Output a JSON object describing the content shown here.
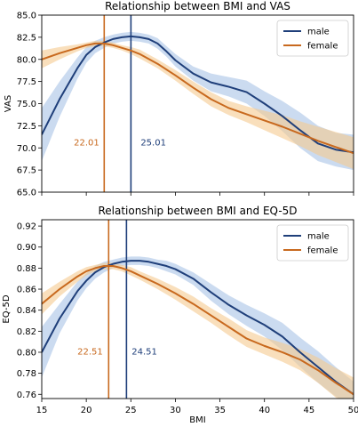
{
  "chart_data": [
    {
      "type": "line",
      "title": "Relationship between BMI and VAS",
      "xlabel": "",
      "ylabel": "VAS",
      "xlim": [
        15,
        50
      ],
      "ylim": [
        65.0,
        85.0
      ],
      "xticks": [
        15,
        20,
        25,
        30,
        35,
        40,
        45,
        50
      ],
      "yticks": [
        65.0,
        67.5,
        70.0,
        72.5,
        75.0,
        77.5,
        80.0,
        82.5,
        85.0
      ],
      "ytick_labels": [
        "65.0",
        "67.5",
        "70.0",
        "72.5",
        "75.0",
        "77.5",
        "80.0",
        "82.5",
        "85.0"
      ],
      "show_xtick_labels": false,
      "grid": false,
      "legend": "top-right",
      "series": [
        {
          "name": "male",
          "color": "#1f3f7a",
          "band_color": "#a9c3e6",
          "x": [
            15,
            17,
            19,
            20,
            21,
            22,
            23,
            24,
            25,
            26,
            27,
            28,
            29,
            30,
            32,
            34,
            36,
            38,
            40,
            42,
            44,
            46,
            48,
            50
          ],
          "y": [
            71.5,
            75.5,
            79.0,
            80.5,
            81.4,
            81.9,
            82.3,
            82.5,
            82.6,
            82.5,
            82.3,
            81.8,
            80.9,
            79.9,
            78.4,
            77.4,
            76.9,
            76.3,
            75.0,
            73.6,
            72.0,
            70.5,
            69.8,
            69.5
          ],
          "lower": [
            68.5,
            73.5,
            77.8,
            79.6,
            80.7,
            81.3,
            81.8,
            82.0,
            82.1,
            82.0,
            81.8,
            81.2,
            80.3,
            79.2,
            77.6,
            76.4,
            75.8,
            75.0,
            73.6,
            71.9,
            70.0,
            68.5,
            67.9,
            67.5
          ],
          "upper": [
            74.5,
            77.5,
            80.2,
            81.4,
            82.1,
            82.5,
            82.8,
            83.0,
            83.1,
            83.0,
            82.8,
            82.4,
            81.5,
            80.6,
            79.2,
            78.4,
            78.0,
            77.6,
            76.4,
            75.3,
            74.0,
            72.5,
            71.7,
            71.5
          ]
        },
        {
          "name": "female",
          "color": "#c8691e",
          "band_color": "#f5c98f",
          "x": [
            15,
            17,
            19,
            20,
            21,
            22,
            23,
            24,
            25,
            26,
            28,
            30,
            32,
            34,
            36,
            38,
            40,
            42,
            44,
            46,
            48,
            50
          ],
          "y": [
            80.0,
            80.7,
            81.3,
            81.6,
            81.8,
            81.8,
            81.6,
            81.3,
            81.0,
            80.6,
            79.5,
            78.2,
            76.8,
            75.5,
            74.5,
            73.8,
            73.1,
            72.4,
            71.6,
            70.8,
            70.1,
            69.4
          ],
          "lower": [
            79.0,
            80.0,
            80.9,
            81.3,
            81.5,
            81.5,
            81.3,
            81.0,
            80.6,
            80.1,
            79.0,
            77.6,
            76.1,
            74.7,
            73.7,
            72.9,
            72.0,
            71.1,
            70.2,
            69.2,
            68.4,
            67.6
          ],
          "upper": [
            81.0,
            81.4,
            81.7,
            81.9,
            82.1,
            82.1,
            81.9,
            81.6,
            81.4,
            81.1,
            80.0,
            78.8,
            77.5,
            76.3,
            75.3,
            74.7,
            74.2,
            73.7,
            73.0,
            72.4,
            71.8,
            71.2
          ]
        }
      ],
      "vlines": [
        {
          "x": 22.01,
          "color": "#c8691e"
        },
        {
          "x": 25.01,
          "color": "#1f3f7a"
        }
      ],
      "annotations": [
        {
          "text": "22.01",
          "x": 18.6,
          "y": 70.3,
          "color": "#c8691e"
        },
        {
          "text": "25.01",
          "x": 26.1,
          "y": 70.3,
          "color": "#1f3f7a"
        }
      ]
    },
    {
      "type": "line",
      "title": "Relationship between BMI and EQ-5D",
      "xlabel": "BMI",
      "ylabel": "EQ-5D",
      "xlim": [
        15,
        50
      ],
      "ylim": [
        0.756,
        0.926
      ],
      "xticks": [
        15,
        20,
        25,
        30,
        35,
        40,
        45,
        50
      ],
      "yticks": [
        0.76,
        0.78,
        0.8,
        0.82,
        0.84,
        0.86,
        0.88,
        0.9,
        0.92
      ],
      "ytick_labels": [
        "0.76",
        "0.78",
        "0.80",
        "0.82",
        "0.84",
        "0.86",
        "0.88",
        "0.90",
        "0.92"
      ],
      "show_xtick_labels": true,
      "grid": false,
      "legend": "top-right",
      "series": [
        {
          "name": "male",
          "color": "#1f3f7a",
          "band_color": "#a9c3e6",
          "x": [
            15,
            17,
            19,
            20,
            21,
            22,
            23,
            24,
            25,
            26,
            27,
            28,
            29,
            30,
            32,
            34,
            36,
            38,
            40,
            42,
            44,
            46,
            48,
            50
          ],
          "y": [
            0.8,
            0.832,
            0.858,
            0.868,
            0.876,
            0.881,
            0.884,
            0.886,
            0.887,
            0.887,
            0.886,
            0.884,
            0.882,
            0.879,
            0.87,
            0.857,
            0.845,
            0.835,
            0.826,
            0.815,
            0.8,
            0.786,
            0.772,
            0.76
          ],
          "lower": [
            0.776,
            0.818,
            0.849,
            0.861,
            0.87,
            0.876,
            0.88,
            0.882,
            0.883,
            0.883,
            0.882,
            0.88,
            0.877,
            0.874,
            0.864,
            0.849,
            0.836,
            0.825,
            0.815,
            0.802,
            0.786,
            0.771,
            0.758,
            0.748
          ],
          "upper": [
            0.824,
            0.846,
            0.867,
            0.875,
            0.882,
            0.886,
            0.888,
            0.89,
            0.891,
            0.891,
            0.89,
            0.888,
            0.887,
            0.884,
            0.876,
            0.865,
            0.854,
            0.845,
            0.837,
            0.828,
            0.814,
            0.801,
            0.786,
            0.772
          ]
        },
        {
          "name": "female",
          "color": "#c8691e",
          "band_color": "#f5c98f",
          "x": [
            15,
            17,
            19,
            20,
            21,
            22,
            23,
            24,
            25,
            26,
            28,
            30,
            32,
            34,
            36,
            38,
            40,
            42,
            44,
            46,
            48,
            50
          ],
          "y": [
            0.846,
            0.86,
            0.872,
            0.877,
            0.88,
            0.882,
            0.882,
            0.88,
            0.877,
            0.873,
            0.865,
            0.856,
            0.846,
            0.835,
            0.824,
            0.813,
            0.806,
            0.8,
            0.793,
            0.783,
            0.771,
            0.76
          ],
          "lower": [
            0.836,
            0.853,
            0.867,
            0.873,
            0.877,
            0.879,
            0.879,
            0.877,
            0.873,
            0.869,
            0.86,
            0.85,
            0.839,
            0.828,
            0.816,
            0.805,
            0.798,
            0.791,
            0.783,
            0.771,
            0.757,
            0.744
          ],
          "upper": [
            0.856,
            0.867,
            0.877,
            0.881,
            0.883,
            0.885,
            0.885,
            0.883,
            0.881,
            0.877,
            0.87,
            0.862,
            0.853,
            0.842,
            0.832,
            0.821,
            0.814,
            0.809,
            0.803,
            0.795,
            0.785,
            0.776
          ]
        }
      ],
      "vlines": [
        {
          "x": 22.51,
          "color": "#c8691e"
        },
        {
          "x": 24.51,
          "color": "#1f3f7a"
        }
      ],
      "annotations": [
        {
          "text": "22.51",
          "x": 19.0,
          "y": 0.798,
          "color": "#c8691e"
        },
        {
          "text": "24.51",
          "x": 25.1,
          "y": 0.798,
          "color": "#1f3f7a"
        }
      ]
    }
  ]
}
